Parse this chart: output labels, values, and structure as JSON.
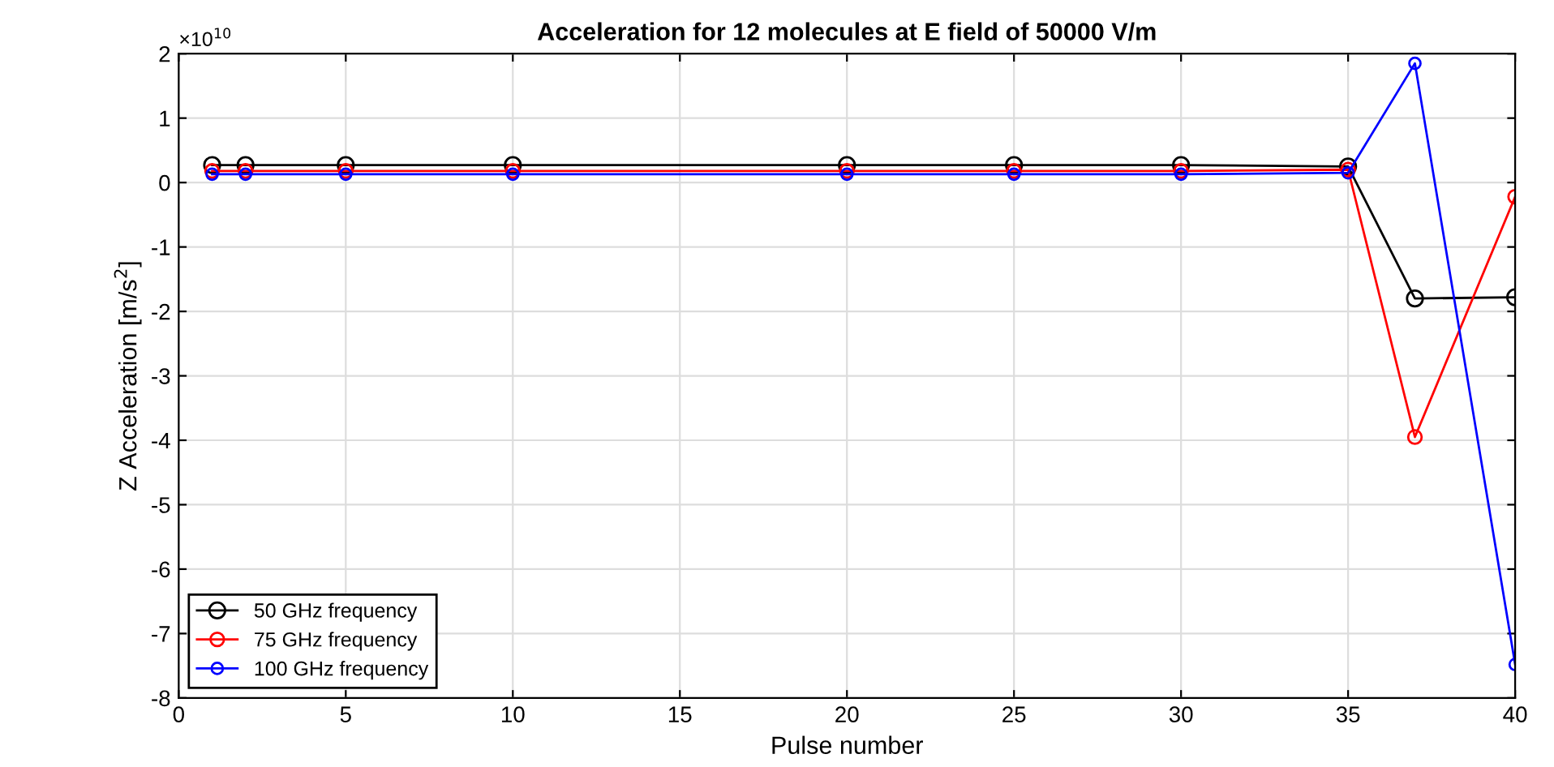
{
  "chart_data": {
    "type": "line",
    "title": "Acceleration for 12 molecules at E field of 50000 V/m",
    "xlabel": "Pulse number",
    "ylabel": "Z Acceleration [m/s$^{2}$]",
    "annotations": [
      "×10$^{10}$"
    ],
    "x": [
      1,
      2,
      5,
      10,
      20,
      25,
      30,
      35,
      37,
      40
    ],
    "series": [
      {
        "name": "50 GHz frequency",
        "color": "#000000",
        "values": [
          0.27,
          0.27,
          0.27,
          0.27,
          0.27,
          0.27,
          0.27,
          0.25,
          -1.8,
          -1.78
        ]
      },
      {
        "name": "75 GHz frequency",
        "color": "#ff0000",
        "values": [
          0.18,
          0.18,
          0.18,
          0.18,
          0.18,
          0.18,
          0.18,
          0.2,
          -3.95,
          -0.22
        ]
      },
      {
        "name": "100 GHz frequency",
        "color": "#0000ff",
        "values": [
          0.13,
          0.13,
          0.13,
          0.13,
          0.13,
          0.13,
          0.13,
          0.15,
          1.85,
          -7.48
        ]
      }
    ],
    "xlim": [
      0,
      40
    ],
    "xticks": [
      0,
      5,
      10,
      15,
      20,
      25,
      30,
      35,
      40
    ],
    "ylim": [
      -8,
      2
    ],
    "yticks": [
      -8,
      -7,
      -6,
      -5,
      -4,
      -3,
      -2,
      -1,
      0,
      1,
      2
    ],
    "grid": true,
    "legend": "bottom left",
    "marker": "circle",
    "line_style": "solid"
  }
}
